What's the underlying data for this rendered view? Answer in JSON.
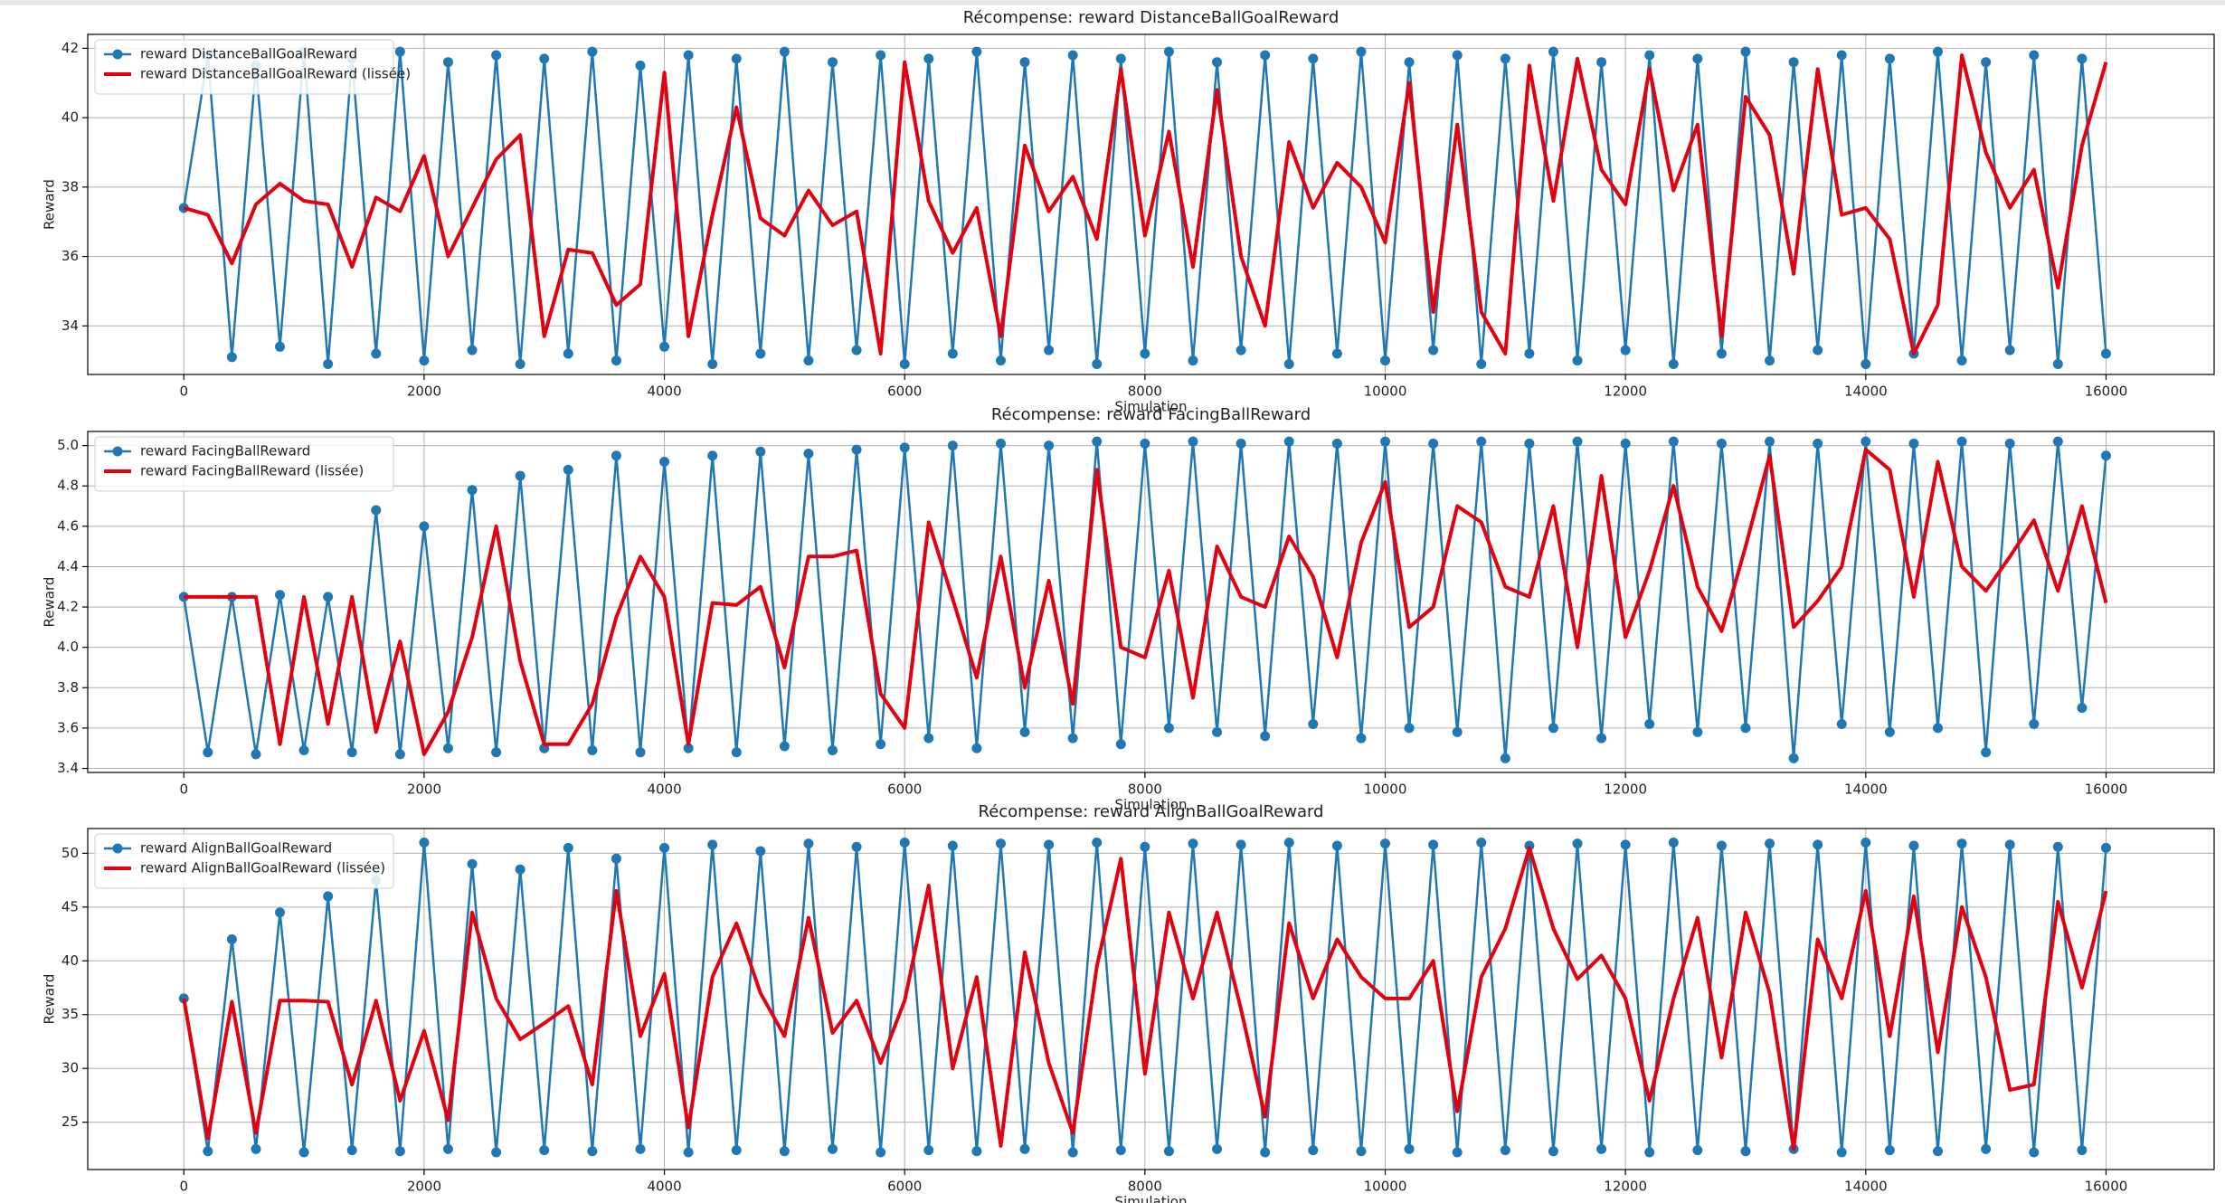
{
  "chart_data": [
    {
      "type": "line",
      "title": "Récompense: reward DistanceBallGoalReward",
      "xlabel": "Simulation",
      "ylabel": "Reward",
      "x": [
        0,
        200,
        400,
        600,
        800,
        1000,
        1200,
        1400,
        1600,
        1800,
        2000,
        2200,
        2400,
        2600,
        2800,
        3000,
        3200,
        3400,
        3600,
        3800,
        4000,
        4200,
        4400,
        4600,
        4800,
        5000,
        5200,
        5400,
        5600,
        5800,
        6000,
        6200,
        6400,
        6600,
        6800,
        7000,
        7200,
        7400,
        7600,
        7800,
        8000,
        8200,
        8400,
        8600,
        8800,
        9000,
        9200,
        9400,
        9600,
        9800,
        10000,
        10200,
        10400,
        10600,
        10800,
        11000,
        11200,
        11400,
        11600,
        11800,
        12000,
        12200,
        12400,
        12600,
        12800,
        13000,
        13200,
        13400,
        13600,
        13800,
        14000,
        14200,
        14400,
        14600,
        14800,
        15000,
        15200,
        15400,
        15600,
        15800,
        16000
      ],
      "series": [
        {
          "name": "reward DistanceBallGoalReward",
          "color": "#1f77b4",
          "marker": true,
          "linewidth": 2.5,
          "values": [
            37.4,
            41.8,
            33.1,
            41.5,
            33.4,
            41.9,
            32.9,
            41.7,
            33.2,
            41.9,
            33.0,
            41.6,
            33.3,
            41.8,
            32.9,
            41.7,
            33.2,
            41.9,
            33.0,
            41.5,
            33.4,
            41.8,
            32.9,
            41.7,
            33.2,
            41.9,
            33.0,
            41.6,
            33.3,
            41.8,
            32.9,
            41.7,
            33.2,
            41.9,
            33.0,
            41.6,
            33.3,
            41.8,
            32.9,
            41.7,
            33.2,
            41.9,
            33.0,
            41.6,
            33.3,
            41.8,
            32.9,
            41.7,
            33.2,
            41.9,
            33.0,
            41.6,
            33.3,
            41.8,
            32.9,
            41.7,
            33.2,
            41.9,
            33.0,
            41.6,
            33.3,
            41.8,
            32.9,
            41.7,
            33.2,
            41.9,
            33.0,
            41.6,
            33.3,
            41.8,
            32.9,
            41.7,
            33.2,
            41.9,
            33.0,
            41.6,
            33.3,
            41.8,
            32.9,
            41.7,
            33.2
          ]
        },
        {
          "name": "reward DistanceBallGoalReward (lissée)",
          "color": "#e3000f",
          "marker": false,
          "linewidth": 4,
          "values": [
            37.4,
            37.2,
            35.8,
            37.5,
            38.1,
            37.6,
            37.5,
            35.7,
            37.7,
            37.3,
            38.9,
            36.0,
            37.4,
            38.8,
            39.5,
            33.7,
            36.2,
            36.1,
            34.6,
            35.2,
            41.3,
            33.7,
            37.2,
            40.3,
            37.1,
            36.6,
            37.9,
            36.9,
            37.3,
            33.2,
            41.6,
            37.6,
            36.1,
            37.4,
            33.7,
            39.2,
            37.3,
            38.3,
            36.5,
            41.4,
            36.6,
            39.6,
            35.7,
            40.8,
            36.0,
            34.0,
            39.3,
            37.4,
            38.7,
            38.0,
            36.4,
            41.0,
            34.4,
            39.8,
            34.4,
            33.2,
            41.5,
            37.6,
            41.7,
            38.5,
            37.5,
            41.4,
            37.9,
            39.8,
            33.7,
            40.6,
            39.5,
            35.5,
            41.4,
            37.2,
            37.4,
            36.5,
            33.2,
            34.6,
            41.8,
            39.0,
            37.4,
            38.5,
            35.1,
            39.2,
            41.6
          ]
        }
      ],
      "xlim": [
        -800,
        16900
      ],
      "ylim": [
        32.6,
        42.4
      ],
      "xticks": [
        0,
        2000,
        4000,
        6000,
        8000,
        10000,
        12000,
        14000,
        16000
      ],
      "yticks": [
        34,
        36,
        38,
        40,
        42
      ],
      "grid": true,
      "legend": "upper left"
    },
    {
      "type": "line",
      "title": "Récompense: reward FacingBallReward",
      "xlabel": "Simulation",
      "ylabel": "Reward",
      "x": [
        0,
        200,
        400,
        600,
        800,
        1000,
        1200,
        1400,
        1600,
        1800,
        2000,
        2200,
        2400,
        2600,
        2800,
        3000,
        3200,
        3400,
        3600,
        3800,
        4000,
        4200,
        4400,
        4600,
        4800,
        5000,
        5200,
        5400,
        5600,
        5800,
        6000,
        6200,
        6400,
        6600,
        6800,
        7000,
        7200,
        7400,
        7600,
        7800,
        8000,
        8200,
        8400,
        8600,
        8800,
        9000,
        9200,
        9400,
        9600,
        9800,
        10000,
        10200,
        10400,
        10600,
        10800,
        11000,
        11200,
        11400,
        11600,
        11800,
        12000,
        12200,
        12400,
        12600,
        12800,
        13000,
        13200,
        13400,
        13600,
        13800,
        14000,
        14200,
        14400,
        14600,
        14800,
        15000,
        15200,
        15400,
        15600,
        15800,
        16000
      ],
      "series": [
        {
          "name": "reward FacingBallReward",
          "color": "#1f77b4",
          "marker": true,
          "linewidth": 2.5,
          "values": [
            4.25,
            3.48,
            4.25,
            3.47,
            4.26,
            3.49,
            4.25,
            3.48,
            4.68,
            3.47,
            4.6,
            3.5,
            4.78,
            3.48,
            4.85,
            3.5,
            4.88,
            3.49,
            4.95,
            3.48,
            4.92,
            3.5,
            4.95,
            3.48,
            4.97,
            3.51,
            4.96,
            3.49,
            4.98,
            3.52,
            4.99,
            3.55,
            5.0,
            3.5,
            5.01,
            3.58,
            5.0,
            3.55,
            5.02,
            3.52,
            5.01,
            3.6,
            5.02,
            3.58,
            5.01,
            3.56,
            5.02,
            3.62,
            5.01,
            3.55,
            5.02,
            3.6,
            5.01,
            3.58,
            5.02,
            3.45,
            5.01,
            3.6,
            5.02,
            3.55,
            5.01,
            3.62,
            5.02,
            3.58,
            5.01,
            3.6,
            5.02,
            3.45,
            5.01,
            3.62,
            5.02,
            3.58,
            5.01,
            3.6,
            5.02,
            3.48,
            5.01,
            3.62,
            5.02,
            3.7,
            4.95
          ]
        },
        {
          "name": "reward FacingBallReward (lissée)",
          "color": "#e3000f",
          "marker": false,
          "linewidth": 4,
          "values": [
            4.25,
            4.25,
            4.25,
            4.25,
            3.52,
            4.25,
            3.62,
            4.25,
            3.58,
            4.03,
            3.47,
            3.68,
            4.05,
            4.6,
            3.93,
            3.52,
            3.52,
            3.72,
            4.15,
            4.45,
            4.25,
            3.52,
            4.22,
            4.21,
            4.3,
            3.9,
            4.45,
            4.45,
            4.48,
            3.77,
            3.6,
            4.62,
            4.24,
            3.85,
            4.45,
            3.8,
            4.33,
            3.72,
            4.88,
            4.0,
            3.95,
            4.38,
            3.75,
            4.5,
            4.25,
            4.2,
            4.55,
            4.35,
            3.95,
            4.52,
            4.82,
            4.1,
            4.2,
            4.7,
            4.62,
            4.3,
            4.25,
            4.7,
            4.0,
            4.85,
            4.05,
            4.38,
            4.8,
            4.3,
            4.08,
            4.5,
            4.95,
            4.1,
            4.23,
            4.4,
            4.98,
            4.88,
            4.25,
            4.92,
            4.4,
            4.28,
            4.45,
            4.63,
            4.28,
            4.7,
            4.22
          ]
        }
      ],
      "xlim": [
        -800,
        16900
      ],
      "ylim": [
        3.38,
        5.07
      ],
      "xticks": [
        0,
        2000,
        4000,
        6000,
        8000,
        10000,
        12000,
        14000,
        16000
      ],
      "yticks": [
        3.4,
        3.6,
        3.8,
        {
          "value": 4,
          "label": "4.0"
        },
        4.2,
        4.4,
        4.6,
        4.8,
        {
          "value": 5,
          "label": "5.0"
        }
      ],
      "grid": true,
      "legend": "upper left"
    },
    {
      "type": "line",
      "title": "Récompense: reward AlignBallGoalReward",
      "xlabel": "Simulation",
      "ylabel": "Reward",
      "x": [
        0,
        200,
        400,
        600,
        800,
        1000,
        1200,
        1400,
        1600,
        1800,
        2000,
        2200,
        2400,
        2600,
        2800,
        3000,
        3200,
        3400,
        3600,
        3800,
        4000,
        4200,
        4400,
        4600,
        4800,
        5000,
        5200,
        5400,
        5600,
        5800,
        6000,
        6200,
        6400,
        6600,
        6800,
        7000,
        7200,
        7400,
        7600,
        7800,
        8000,
        8200,
        8400,
        8600,
        8800,
        9000,
        9200,
        9400,
        9600,
        9800,
        10000,
        10200,
        10400,
        10600,
        10800,
        11000,
        11200,
        11400,
        11600,
        11800,
        12000,
        12200,
        12400,
        12600,
        12800,
        13000,
        13200,
        13400,
        13600,
        13800,
        14000,
        14200,
        14400,
        14600,
        14800,
        15000,
        15200,
        15400,
        15600,
        15800,
        16000
      ],
      "series": [
        {
          "name": "reward AlignBallGoalReward",
          "color": "#1f77b4",
          "marker": true,
          "linewidth": 2.5,
          "values": [
            36.5,
            22.3,
            42.0,
            22.5,
            44.5,
            22.2,
            46.0,
            22.4,
            47.5,
            22.3,
            51.0,
            22.5,
            49.0,
            22.2,
            48.5,
            22.4,
            50.5,
            22.3,
            49.5,
            22.5,
            50.5,
            22.2,
            50.8,
            22.4,
            50.2,
            22.3,
            50.9,
            22.5,
            50.6,
            22.2,
            51.0,
            22.4,
            50.7,
            22.3,
            50.9,
            22.5,
            50.8,
            22.2,
            51.0,
            22.4,
            50.6,
            22.3,
            50.9,
            22.5,
            50.8,
            22.2,
            51.0,
            22.4,
            50.7,
            22.3,
            50.9,
            22.5,
            50.8,
            22.2,
            51.0,
            22.4,
            50.7,
            22.3,
            50.9,
            22.5,
            50.8,
            22.2,
            51.0,
            22.4,
            50.7,
            22.3,
            50.9,
            22.5,
            50.8,
            22.2,
            51.0,
            22.4,
            50.7,
            22.3,
            50.9,
            22.5,
            50.8,
            22.2,
            50.6,
            22.4,
            50.5
          ]
        },
        {
          "name": "reward AlignBallGoalReward (lissée)",
          "color": "#e3000f",
          "marker": false,
          "linewidth": 4,
          "values": [
            36.5,
            23.5,
            36.2,
            24,
            36.3,
            36.3,
            36.2,
            28.5,
            36.3,
            27,
            33.5,
            25.2,
            44.5,
            36.5,
            32.7,
            34.2,
            35.8,
            28.5,
            46.5,
            33,
            38.8,
            24.5,
            38.5,
            43.5,
            37,
            33,
            44,
            33.3,
            36.3,
            30.5,
            36.3,
            47,
            30,
            38.5,
            22.8,
            40.8,
            30.5,
            24,
            39.5,
            49.5,
            29.5,
            44.5,
            36.5,
            44.5,
            35.5,
            25.5,
            43.5,
            36.5,
            42,
            38.5,
            36.5,
            36.5,
            40,
            26,
            38.5,
            43,
            50.5,
            43,
            38.3,
            40.5,
            36.5,
            27,
            36.5,
            44,
            31,
            44.5,
            37,
            22.5,
            42,
            36.5,
            46.5,
            33,
            46,
            31.5,
            45,
            38.5,
            28,
            28.5,
            45.5,
            37.5,
            46.5
          ]
        }
      ],
      "xlim": [
        -800,
        16900
      ],
      "ylim": [
        20.6,
        52.3
      ],
      "xticks": [
        0,
        2000,
        4000,
        6000,
        8000,
        10000,
        12000,
        14000,
        16000
      ],
      "yticks": [
        25,
        30,
        35,
        40,
        45,
        50
      ],
      "grid": true,
      "legend": "upper left"
    }
  ]
}
